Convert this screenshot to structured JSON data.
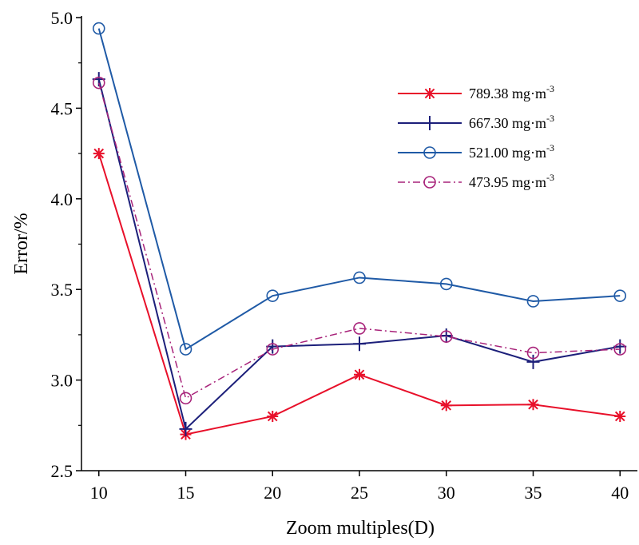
{
  "chart_data": {
    "type": "line",
    "title": "",
    "xlabel": "Zoom multiples(D)",
    "ylabel": "Error/%",
    "x": [
      10,
      15,
      20,
      25,
      30,
      35,
      40
    ],
    "xlim": [
      9,
      41
    ],
    "ylim": [
      2.5,
      5.0
    ],
    "xticks": [
      "10",
      "15",
      "20",
      "25",
      "30",
      "35",
      "40"
    ],
    "yticks": [
      "2.5",
      "3.0",
      "3.5",
      "4.0",
      "4.5",
      "5.0"
    ],
    "grid": false,
    "legend_position": "top-right",
    "series": [
      {
        "name": "789.38 mg·m",
        "sup": "-3",
        "color": "#e8102a",
        "marker": "asterisk",
        "dash": "solid",
        "values": [
          4.25,
          2.7,
          2.8,
          3.03,
          2.86,
          2.865,
          2.8
        ]
      },
      {
        "name": "667.30 mg·m",
        "sup": "-3",
        "color": "#1c1f7a",
        "marker": "plus",
        "dash": "solid",
        "values": [
          4.66,
          2.73,
          3.185,
          3.2,
          3.245,
          3.1,
          3.185
        ]
      },
      {
        "name": "521.00 mg·m",
        "sup": "-3",
        "color": "#1f5aa6",
        "marker": "circle",
        "dash": "solid",
        "values": [
          4.94,
          3.17,
          3.465,
          3.565,
          3.53,
          3.435,
          3.465
        ]
      },
      {
        "name": "473.95 mg·m",
        "sup": "-3",
        "color": "#a8237a",
        "marker": "circle",
        "dash": "dashdot",
        "values": [
          4.64,
          2.9,
          3.17,
          3.285,
          3.24,
          3.15,
          3.17
        ]
      }
    ]
  }
}
